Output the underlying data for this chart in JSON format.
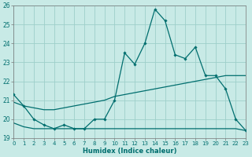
{
  "xlabel": "Humidex (Indice chaleur)",
  "bg_color": "#c8eae6",
  "grid_color": "#9dcfca",
  "line_color": "#006e6e",
  "xlim": [
    0,
    23
  ],
  "ylim": [
    19,
    26
  ],
  "yticks": [
    19,
    20,
    21,
    22,
    23,
    24,
    25,
    26
  ],
  "xtick_labels": [
    "0",
    "1",
    "2",
    "3",
    "4",
    "5",
    "6",
    "7",
    "8",
    "9",
    "10",
    "11",
    "12",
    "13",
    "14",
    "15",
    "16",
    "17",
    "18",
    "19",
    "20",
    "21",
    "22",
    "23"
  ],
  "main_x": [
    0,
    1,
    2,
    3,
    4,
    5,
    6,
    7,
    8,
    9,
    10,
    11,
    12,
    13,
    14,
    15,
    16,
    17,
    18,
    19,
    20,
    21,
    22,
    23
  ],
  "main_y": [
    21.3,
    20.7,
    20.0,
    19.7,
    19.5,
    19.7,
    19.5,
    19.5,
    20.0,
    20.0,
    21.0,
    23.5,
    22.9,
    24.0,
    25.8,
    25.2,
    23.4,
    23.2,
    23.8,
    22.3,
    22.3,
    21.6,
    20.0,
    19.4
  ],
  "line2_x": [
    0,
    1,
    2,
    3,
    4,
    5,
    6,
    7,
    8,
    9,
    10,
    11,
    12,
    13,
    14,
    15,
    16,
    17,
    18,
    19,
    20,
    21,
    22,
    23
  ],
  "line2_y": [
    20.9,
    20.7,
    20.6,
    20.5,
    20.5,
    20.6,
    20.7,
    20.8,
    20.9,
    21.0,
    21.2,
    21.3,
    21.4,
    21.5,
    21.6,
    21.7,
    21.8,
    21.9,
    22.0,
    22.1,
    22.2,
    22.3,
    22.3,
    22.3
  ],
  "line3_x": [
    0,
    1,
    2,
    3,
    4,
    5,
    6,
    7,
    8,
    9,
    10,
    11,
    12,
    13,
    14,
    15,
    16,
    17,
    18,
    19,
    20,
    21,
    22,
    23
  ],
  "line3_y": [
    19.8,
    19.6,
    19.5,
    19.5,
    19.5,
    19.5,
    19.5,
    19.5,
    19.5,
    19.5,
    19.5,
    19.5,
    19.5,
    19.5,
    19.5,
    19.5,
    19.5,
    19.5,
    19.5,
    19.5,
    19.5,
    19.5,
    19.5,
    19.4
  ]
}
